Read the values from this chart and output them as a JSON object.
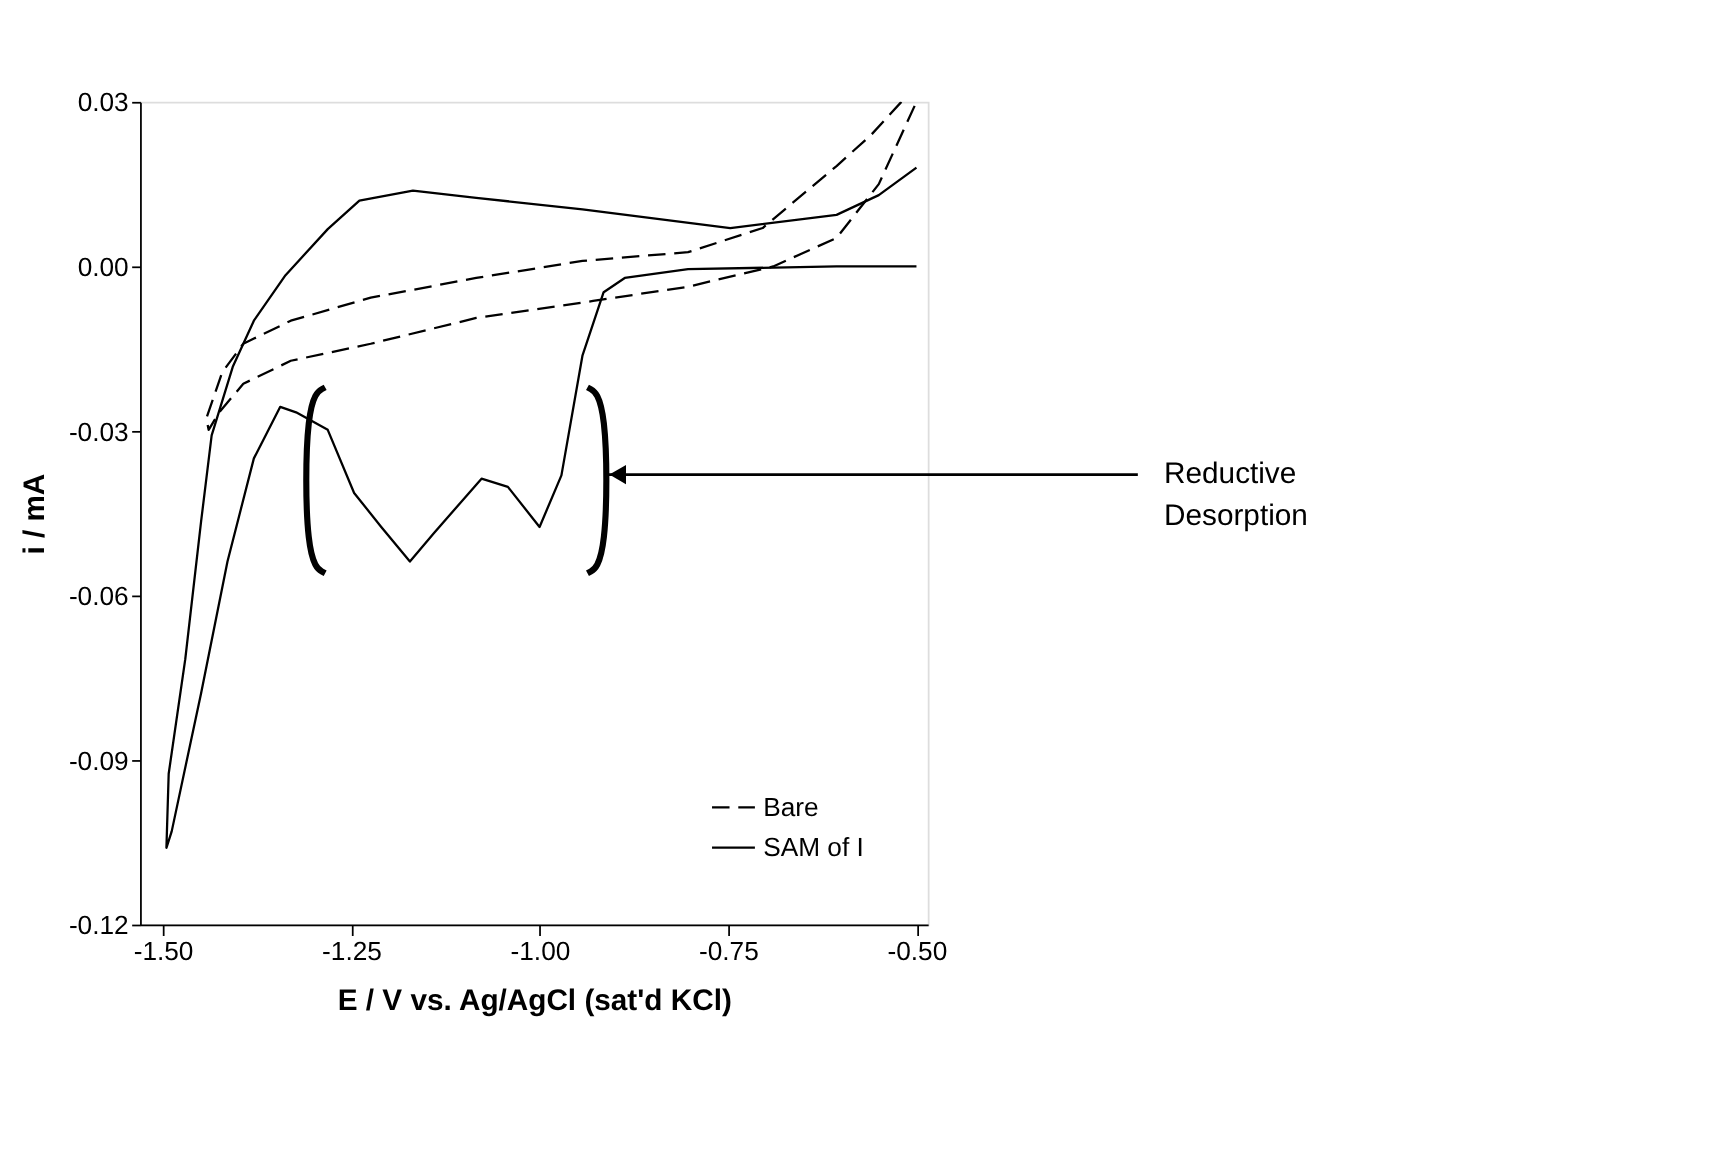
{
  "chart_data": {
    "type": "line",
    "xlabel": "E / V vs. Ag/AgCl (sat'd KCl)",
    "ylabel": "i / mA",
    "xlim": [
      -1.53,
      -0.485
    ],
    "ylim": [
      -0.12,
      0.03
    ],
    "xticks": [
      {
        "value": -1.5,
        "label": "-1.50"
      },
      {
        "value": -1.25,
        "label": "-1.25"
      },
      {
        "value": -1.0,
        "label": "-1.00"
      },
      {
        "value": -0.75,
        "label": "-0.75"
      },
      {
        "value": -0.5,
        "label": "-0.50"
      }
    ],
    "yticks": [
      {
        "value": 0.03,
        "label": "0.03"
      },
      {
        "value": 0.0,
        "label": "0.00"
      },
      {
        "value": -0.03,
        "label": "-0.03"
      },
      {
        "value": -0.06,
        "label": "-0.06"
      },
      {
        "value": -0.09,
        "label": "-0.09"
      },
      {
        "value": -0.12,
        "label": "-0.12"
      }
    ],
    "grid": false,
    "legend": "bottom right",
    "marker": "none",
    "annotations": [
      "Reductive Desorption"
    ],
    "series": [
      {
        "name": "Bare",
        "color": "#000000",
        "line_style": "dashed",
        "x": [
          -0.52,
          -0.56,
          -0.606,
          -0.704,
          -0.803,
          -0.943,
          -1.084,
          -1.224,
          -1.33,
          -1.393,
          -1.421,
          -1.442,
          -1.439,
          -1.425,
          -1.393,
          -1.33,
          -1.224,
          -1.084,
          -0.929,
          -0.803,
          -0.69,
          -0.606,
          -0.55,
          -0.5
        ],
        "values": [
          0.03,
          0.024,
          0.0183,
          0.007,
          0.0026,
          0.001,
          -0.0021,
          -0.0057,
          -0.0099,
          -0.0141,
          -0.0193,
          -0.0277,
          -0.0298,
          -0.0266,
          -0.0214,
          -0.0172,
          -0.0141,
          -0.0094,
          -0.0063,
          -0.0037,
          0.0,
          0.0052,
          0.015,
          0.03
        ]
      },
      {
        "name": "SAM of I",
        "color": "#000000",
        "line_style": "solid",
        "x": [
          -0.5,
          -0.55,
          -0.606,
          -0.747,
          -0.943,
          -1.084,
          -1.168,
          -1.239,
          -1.281,
          -1.337,
          -1.379,
          -1.407,
          -1.435,
          -1.449,
          -1.47,
          -1.492,
          -1.495,
          -1.488,
          -1.449,
          -1.414,
          -1.379,
          -1.344,
          -1.323,
          -1.281,
          -1.246,
          -1.21,
          -1.172,
          -1.14,
          -1.077,
          -1.042,
          -1.0,
          -0.971,
          -0.943,
          -0.915,
          -0.887,
          -0.803,
          -0.606,
          -0.5
        ],
        "values": [
          0.018,
          0.013,
          0.0094,
          0.007,
          0.0104,
          0.0125,
          0.0138,
          0.012,
          0.0068,
          -0.0016,
          -0.0099,
          -0.0183,
          -0.0308,
          -0.0465,
          -0.0716,
          -0.0925,
          -0.106,
          -0.103,
          -0.0778,
          -0.0538,
          -0.035,
          -0.0256,
          -0.0266,
          -0.0298,
          -0.0413,
          -0.0475,
          -0.0538,
          -0.0486,
          -0.0387,
          -0.0402,
          -0.0475,
          -0.0381,
          -0.0162,
          -0.0047,
          -0.0021,
          -0.0005,
          0.0,
          0.0
        ]
      }
    ]
  }
}
